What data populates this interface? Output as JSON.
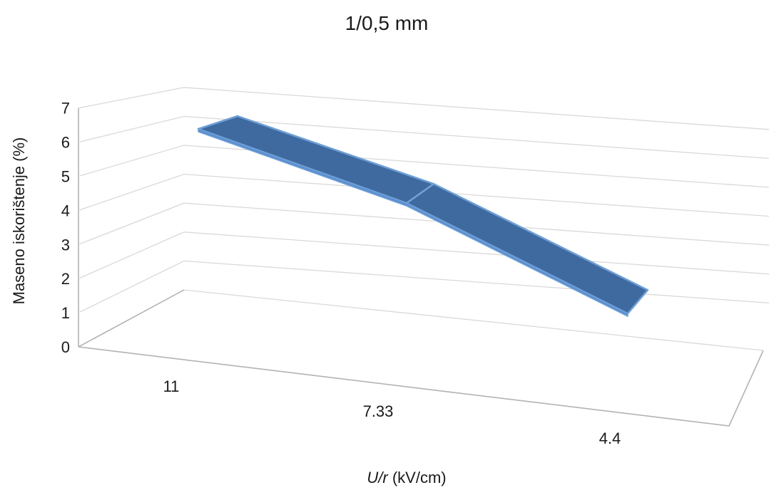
{
  "chart_data": {
    "type": "line",
    "style": "3d-ribbon",
    "title": "1/0,5 mm",
    "xlabel": {
      "italic": "U/r",
      "normal": " (kV/cm)"
    },
    "ylabel": "Maseno iskorištenje (%)",
    "ylim": [
      0,
      7
    ],
    "yticks": [
      "0",
      "1",
      "2",
      "3",
      "4",
      "5",
      "6",
      "7"
    ],
    "categories": [
      "11",
      "7.33",
      "4.4"
    ],
    "series": [
      {
        "values": [
          6.5,
          5.1,
          2.6
        ]
      }
    ],
    "grid": true,
    "legend": "none",
    "colors": {
      "series": "#3e6aa0",
      "series_edge": "#6f9fd6",
      "grid": "#d9d9d9",
      "axis": "#b3b3b3"
    }
  }
}
